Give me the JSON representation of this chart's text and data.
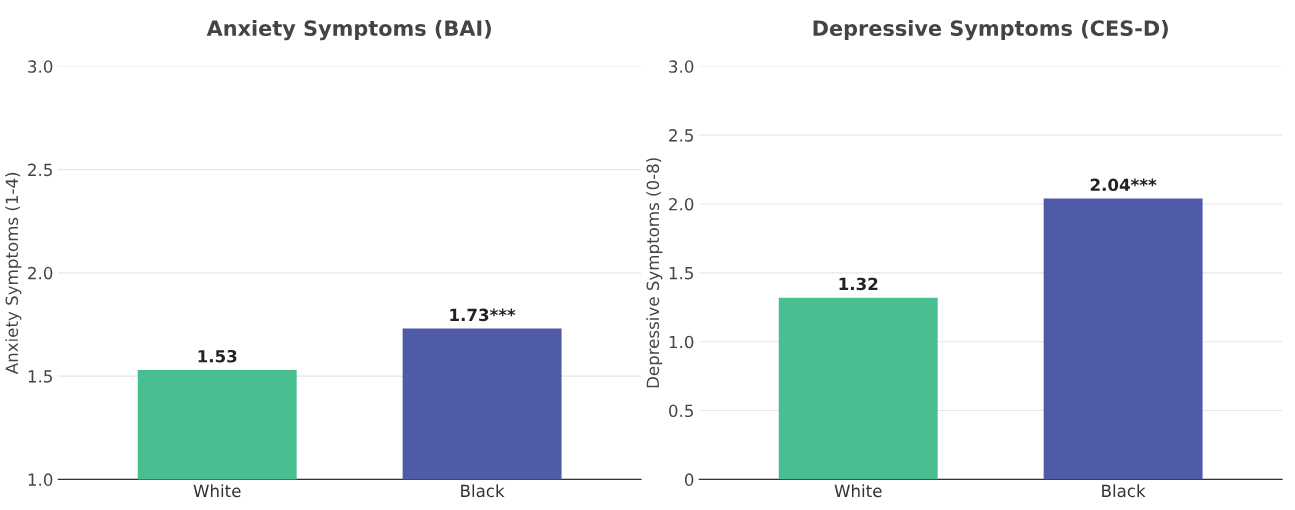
{
  "chart_data": [
    {
      "type": "bar",
      "title": "Anxiety Symptoms (BAI)",
      "ylabel": "Anxiety Symptoms (1-4)",
      "categories": [
        "White",
        "Black"
      ],
      "values": [
        1.53,
        1.73
      ],
      "colors": [
        "#48bf91",
        "#4f5aa8"
      ],
      "value_labels": [
        "1.53",
        "1.73***"
      ],
      "ylim": [
        1.0,
        3.0
      ],
      "yticks": [
        {
          "value": 1.0,
          "label": "1.0"
        },
        {
          "value": 1.5,
          "label": "1.5"
        },
        {
          "value": 2.0,
          "label": "2.0"
        },
        {
          "value": 2.5,
          "label": "2.5"
        },
        {
          "value": 3.0,
          "label": "3.0"
        }
      ],
      "grid": "y",
      "legend": false
    },
    {
      "type": "bar",
      "title": "Depressive Symptoms (CES-D)",
      "ylabel": "Depressive Symptoms (0-8)",
      "categories": [
        "White",
        "Black"
      ],
      "values": [
        1.32,
        2.04
      ],
      "colors": [
        "#48bf91",
        "#4f5aa8"
      ],
      "value_labels": [
        "1.32",
        "2.04***"
      ],
      "ylim": [
        0,
        3.0
      ],
      "yticks": [
        0,
        {
          "value": 0.5,
          "label": "0.5"
        },
        {
          "value": 1.0,
          "label": "1.0"
        },
        {
          "value": 1.5,
          "label": "1.5"
        },
        {
          "value": 2.0,
          "label": "2.0"
        },
        {
          "value": 2.5,
          "label": "2.5"
        },
        {
          "value": 3.0,
          "label": "3.0"
        }
      ],
      "grid": "y",
      "legend": false
    }
  ]
}
